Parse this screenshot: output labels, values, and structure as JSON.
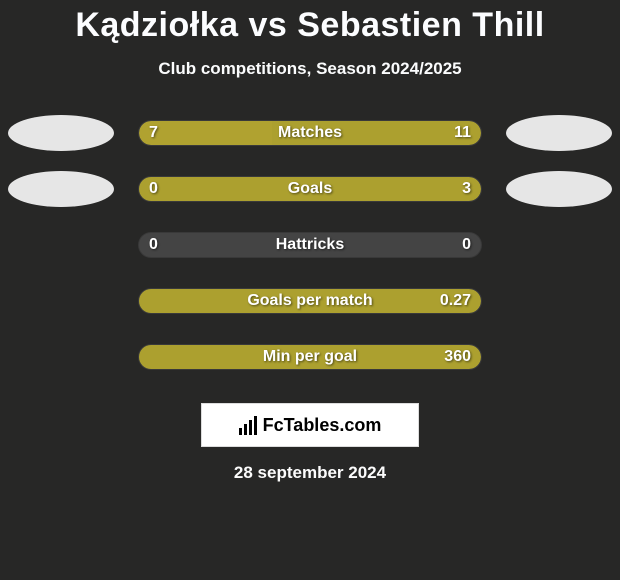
{
  "title": "Kądziołka vs Sebastien Thill",
  "subtitle": "Club competitions, Season 2024/2025",
  "date": "28 september 2024",
  "branding_text": "FcTables.com",
  "colors": {
    "page_bg": "#272726",
    "title_color": "#fcfdff",
    "subtitle_color": "#fbfcfd",
    "date_color": "#fcfcfc",
    "ellipse": "#e6e6e6",
    "bar_fill": "#b0a230",
    "bar_fill2": "#aca02f",
    "bar_empty": "#444444",
    "bar_text": "#ffffff"
  },
  "stats": [
    {
      "label": "Matches",
      "left_value": "7",
      "right_value": "11",
      "left_pct": 38.9,
      "right_pct": 61.1,
      "show_ellipses": true,
      "ellipse_offset": false
    },
    {
      "label": "Goals",
      "left_value": "0",
      "right_value": "3",
      "left_pct": 0,
      "right_pct": 100,
      "show_ellipses": true,
      "ellipse_offset": true
    },
    {
      "label": "Hattricks",
      "left_value": "0",
      "right_value": "0",
      "left_pct": 0,
      "right_pct": 0,
      "show_ellipses": false,
      "ellipse_offset": false
    },
    {
      "label": "Goals per match",
      "left_value": "",
      "right_value": "0.27",
      "left_pct": 0,
      "right_pct": 100,
      "show_ellipses": false,
      "ellipse_offset": false
    },
    {
      "label": "Min per goal",
      "left_value": "",
      "right_value": "360",
      "left_pct": 0,
      "right_pct": 100,
      "show_ellipses": false,
      "ellipse_offset": false
    }
  ]
}
